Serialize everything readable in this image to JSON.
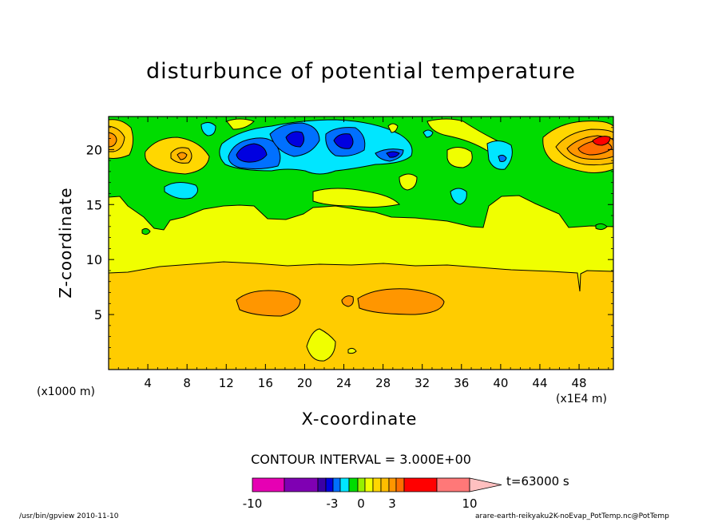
{
  "plot": {
    "title": "disturbunce of potential temperature",
    "ylabel": "Z-coordinate",
    "xlabel": "X-coordinate",
    "x_unit_left": "(x1000 m)",
    "x_unit_right": "(x1E4 m)",
    "contour_interval": "CONTOUR INTERVAL = 3.000E+00",
    "time_label": "t=63000 s"
  },
  "footer": {
    "left": "/usr/bin/gpview  2010-11-10",
    "right": "arare-earth-reikyaku2K-noEvap_PotTemp.nc@PotTemp"
  },
  "colorbar": {
    "tick_labels": [
      "-10",
      "-3",
      "0",
      "3",
      "10"
    ],
    "levels": [
      -10,
      -8,
      -6,
      -4,
      -3,
      -2,
      -1,
      0,
      1,
      2,
      3,
      4,
      5,
      6,
      8,
      10
    ],
    "colors": [
      "#e600b3",
      "#7f00b3",
      "#3a00a6",
      "#0000e0",
      "#0070ff",
      "#00e6ff",
      "#00dc00",
      "#96f000",
      "#f0ff00",
      "#ffd700",
      "#ffbe00",
      "#ff9600",
      "#ff6e00",
      "#ff0000",
      "#ff7878"
    ],
    "overflow_color": "#ffc0c0"
  },
  "chart_data": {
    "type": "heatmap",
    "title": "disturbunce of potential temperature",
    "xlabel": "X-coordinate",
    "ylabel": "Z-coordinate",
    "xlim": [
      0,
      51.5
    ],
    "ylim": [
      0,
      23
    ],
    "x_ticks": [
      4,
      8,
      12,
      16,
      20,
      24,
      28,
      32,
      36,
      40,
      44,
      48
    ],
    "y_ticks": [
      5,
      10,
      15,
      20
    ],
    "contour_interval": 3.0,
    "colors": {
      "magenta": "#e600b3",
      "purple": "#7f00b3",
      "dark_blue": "#0000e0",
      "blue": "#0070ff",
      "cyan": "#00e6ff",
      "green": "#00dc00",
      "yellow": "#f0ff00",
      "gold": "#ffd700",
      "light_orange": "#ffbe00",
      "orange": "#ff9600",
      "red": "#ff0000",
      "pink": "#ff7878"
    },
    "field_regions": [
      {
        "x": [
          0,
          51.5
        ],
        "y": [
          0,
          9.5
        ],
        "value": 2.5
      },
      {
        "x": [
          0,
          51.5
        ],
        "y": [
          9.5,
          16.5
        ],
        "value": 1.0
      },
      {
        "x": [
          0,
          51.5
        ],
        "y": [
          16.5,
          23
        ],
        "value": -0.5
      },
      {
        "x": [
          18,
          23
        ],
        "y": [
          1,
          3.5
        ],
        "value": 1.0
      },
      {
        "x": [
          13.5,
          19
        ],
        "y": [
          5.5,
          7.2
        ],
        "value": 3.5
      },
      {
        "x": [
          25.5,
          33.5
        ],
        "y": [
          5.2,
          7.3
        ],
        "value": 3.5
      },
      {
        "x": [
          16,
          20
        ],
        "y": [
          20,
          22
        ],
        "value": -4.0
      },
      {
        "x": [
          22,
          25
        ],
        "y": [
          19.5,
          21.5
        ],
        "value": -4.0
      },
      {
        "x": [
          11,
          31
        ],
        "y": [
          18,
          22.5
        ],
        "value": -2.5
      },
      {
        "x": [
          14,
          17.5
        ],
        "y": [
          18.5,
          20.5
        ],
        "value": -3.5
      },
      {
        "x": [
          5,
          9
        ],
        "y": [
          15.7,
          17.5
        ],
        "value": -2.0
      },
      {
        "x": [
          0,
          2
        ],
        "y": [
          19.5,
          22
        ],
        "value": 4.5
      },
      {
        "x": [
          44,
          51.5
        ],
        "y": [
          18.5,
          22.5
        ],
        "value": 4.5
      },
      {
        "x": [
          6,
          10
        ],
        "y": [
          18.5,
          20.5
        ],
        "value": 4.0
      },
      {
        "x": [
          36.5,
          40.5
        ],
        "y": [
          18.5,
          21
        ],
        "value": -2.0
      },
      {
        "x": [
          33,
          36
        ],
        "y": [
          18,
          20.5
        ],
        "value": 1.0
      },
      {
        "x": [
          34.5,
          36.5
        ],
        "y": [
          14.5,
          16.5
        ],
        "value": -2.0
      },
      {
        "x": [
          20,
          29
        ],
        "y": [
          13.5,
          16.5
        ],
        "value": -0.5
      }
    ]
  }
}
